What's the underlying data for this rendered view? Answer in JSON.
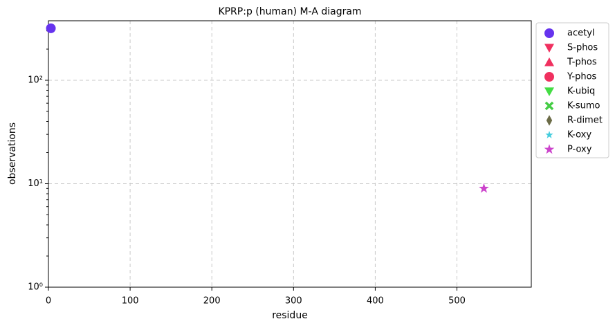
{
  "chart_data": {
    "type": "scatter",
    "title": "KPRP:p (human) M-A diagram",
    "x_label": "residue",
    "y_label": "observations",
    "xlim": [
      0,
      591
    ],
    "xticks": [
      0,
      100,
      200,
      300,
      400,
      500
    ],
    "ylim": [
      1,
      376
    ],
    "log_y": true,
    "yticks": [
      {
        "value": 1,
        "label": "10⁰"
      },
      {
        "value": 10,
        "label": "10¹"
      },
      {
        "value": 100,
        "label": "10²"
      }
    ],
    "yminorticks": [
      2,
      3,
      4,
      5,
      6,
      7,
      8,
      9,
      20,
      30,
      40,
      50,
      60,
      70,
      80,
      90,
      200,
      300
    ],
    "grid": true,
    "legend": "outside right",
    "series": [
      {
        "name": "acetyl",
        "color": "#6633ee",
        "marker": "circle",
        "x": [
          3
        ],
        "values": [
          318
        ]
      },
      {
        "name": "S-phos",
        "color": "#f0305f",
        "marker": "triangle-down",
        "x": [],
        "values": []
      },
      {
        "name": "T-phos",
        "color": "#f0305f",
        "marker": "triangle-up",
        "x": [],
        "values": []
      },
      {
        "name": "Y-phos",
        "color": "#f0305f",
        "marker": "circle",
        "x": [],
        "values": []
      },
      {
        "name": "K-ubiq",
        "color": "#44dd44",
        "marker": "triangle-down",
        "x": [],
        "values": []
      },
      {
        "name": "K-sumo",
        "color": "#44cc44",
        "marker": "x",
        "x": [],
        "values": []
      },
      {
        "name": "R-dimet",
        "color": "#6b6b47",
        "marker": "diamond",
        "x": [],
        "values": []
      },
      {
        "name": "K-oxy",
        "color": "#44ccdd",
        "marker": "star-small",
        "x": [],
        "values": []
      },
      {
        "name": "P-oxy",
        "color": "#cc44cc",
        "marker": "star",
        "x": [
          533
        ],
        "values": [
          9
        ]
      }
    ]
  }
}
